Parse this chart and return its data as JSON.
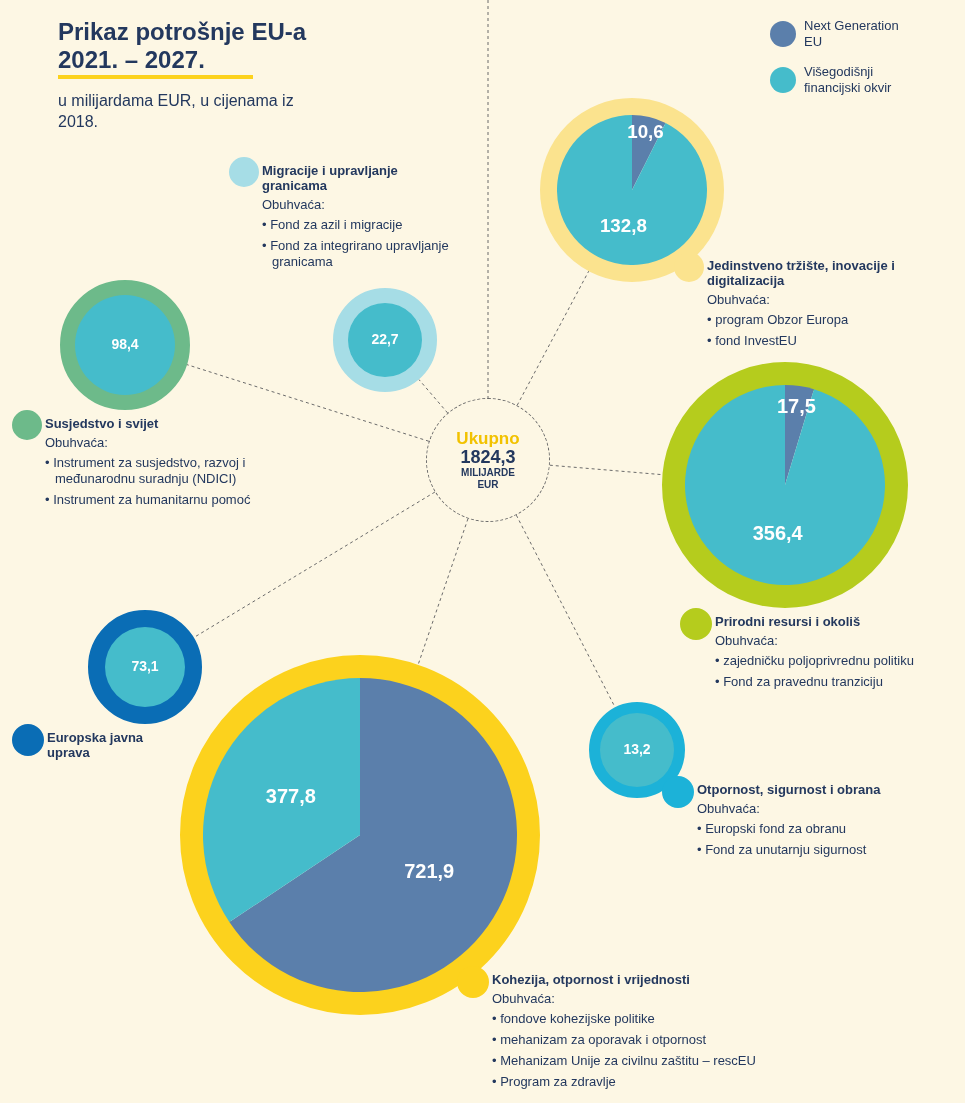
{
  "chart_data": [
    {
      "type": "other",
      "title": "Prikaz potrošnje EU-a 2021. – 2027.",
      "subtitle": "u milijardama EUR, u cijenama iz 2018.",
      "annotations": [
        "Ukupno",
        "1824,3",
        "MILIJARDE EUR"
      ]
    },
    {
      "type": "pie",
      "title": "Migracije i upravljanje granicama",
      "categories": [
        null
      ],
      "values": [
        22.7
      ],
      "colors": [
        "#45bccb"
      ],
      "value_labels": [
        "22,7"
      ],
      "annotations": [
        "Obuhvaća:",
        "• Fond za azil i migracije",
        "• Fond za integrirano upravljanje granicama"
      ]
    },
    {
      "type": "pie",
      "title": "Jedinstveno tržište, inovacije i digitalizacija",
      "categories": [
        "Next Generation EU",
        "Višegodišnji financijski okvir"
      ],
      "values": [
        10.6,
        132.8
      ],
      "colors": [
        "#5b7fab",
        "#45bccb"
      ],
      "value_labels": [
        "10,6",
        "132,8"
      ],
      "legend": "top right",
      "annotations": [
        "Obuhvaća:",
        "• program Obzor Europa",
        "• fond InvestEU"
      ]
    },
    {
      "type": "pie",
      "title": "Susjedstvo i svijet",
      "categories": [
        null
      ],
      "values": [
        98.4
      ],
      "colors": [
        "#45bccb"
      ],
      "value_labels": [
        "98,4"
      ],
      "annotations": [
        "Obuhvaća:",
        "• Instrument za susjedstvo, razvoj i međunarodnu suradnju (NDICI)",
        "• Instrument za humanitarnu pomoć"
      ]
    },
    {
      "type": "pie",
      "title": "Prirodni resursi i okoliš",
      "categories": [
        null,
        null
      ],
      "values": [
        17.5,
        356.4
      ],
      "colors": [
        "#5b7fab",
        "#45bccb"
      ],
      "value_labels": [
        "17,5",
        "356,4"
      ],
      "annotations": [
        "Obuhvaća:",
        "• zajedničku poljoprivrednu politiku",
        "• Fond za pravednu tranziciju"
      ]
    },
    {
      "type": "pie",
      "title": "Europska javna uprava",
      "categories": [
        null
      ],
      "values": [
        73.1
      ],
      "colors": [
        "#45bccb"
      ],
      "value_labels": [
        "73,1"
      ]
    },
    {
      "type": "pie",
      "title": "Otpornost, sigurnost i obrana",
      "categories": [
        null
      ],
      "values": [
        13.2
      ],
      "colors": [
        "#45bccb"
      ],
      "value_labels": [
        "13,2"
      ],
      "annotations": [
        "Obuhvaća:",
        "• Europski fond za obranu",
        "• Fond za unutarnju sigurnost"
      ]
    },
    {
      "type": "pie",
      "title": "Kohezija, otpornost i vrijednosti",
      "categories": [
        null,
        null
      ],
      "values": [
        721.9,
        377.8
      ],
      "colors": [
        "#5b7fab",
        "#45bccb"
      ],
      "value_labels": [
        "721,9",
        "377,8"
      ],
      "annotations": [
        "Obuhvaća:",
        "• fondove kohezijske politike",
        "• mehanizam za oporavak i otpornost",
        "• Mehanizam Unije za civilnu zaštitu – rescEU",
        "• Program za zdravlje"
      ]
    }
  ]
}
